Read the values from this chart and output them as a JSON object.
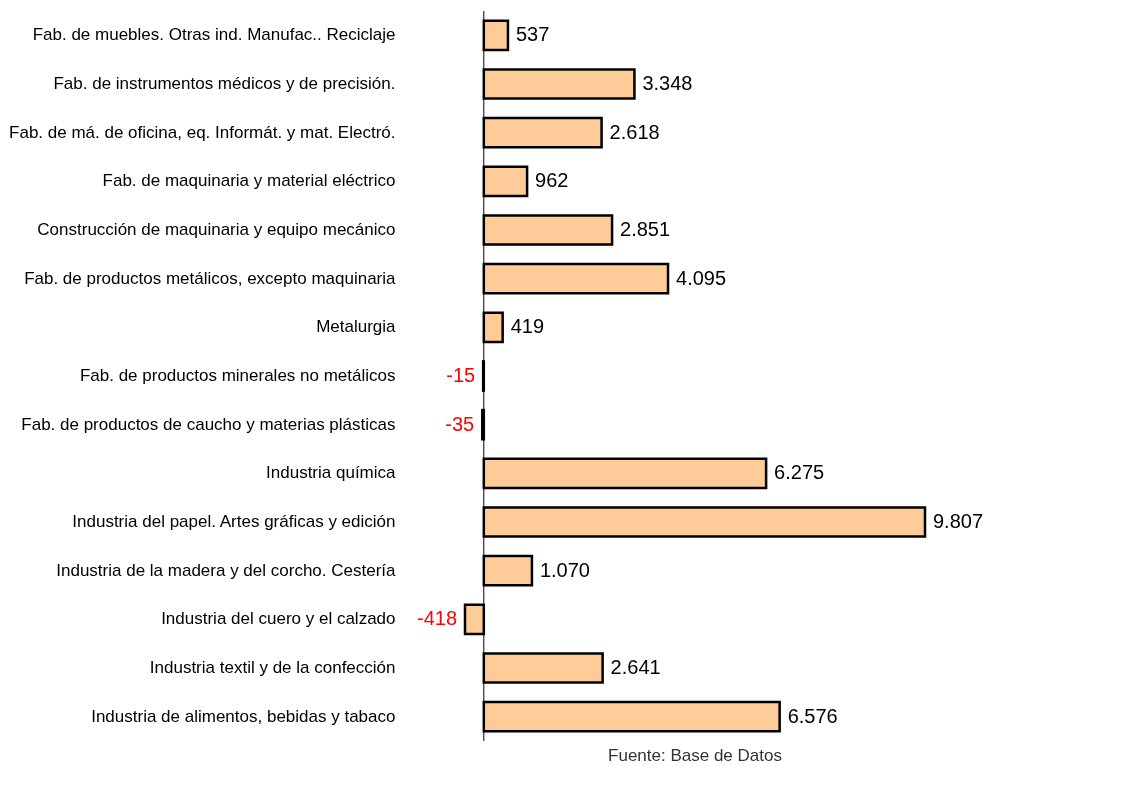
{
  "chart_data": {
    "type": "bar",
    "orientation": "horizontal",
    "categories": [
      "Fab. de muebles. Otras ind. Manufac.. Reciclaje",
      "Fab. de instrumentos médicos y de precisión.",
      "Fab. de má. de oficina, eq. Informát. y mat. Electró.",
      "Fab. de maquinaria y material eléctrico",
      "Construcción de maquinaria y equipo mecánico",
      "Fab. de productos metálicos, excepto maquinaria",
      "Metalurgia",
      "Fab. de productos minerales no metálicos",
      "Fab. de productos de caucho y materias plásticas",
      "Industria química",
      "Industria del papel. Artes gráficas y edición",
      "Industria de la madera y del corcho. Cestería",
      "Industria del cuero y el calzado",
      "Industria textil y de la confección",
      "Industria de alimentos, bebidas y tabaco"
    ],
    "values": [
      537,
      3348,
      2618,
      962,
      2851,
      4095,
      419,
      -15,
      -35,
      6275,
      9807,
      1070,
      -418,
      2641,
      6576
    ],
    "value_labels": [
      "537",
      "3.348",
      "2.618",
      "962",
      "2.851",
      "4.095",
      "419",
      "-15",
      "-35",
      "6.275",
      "9.807",
      "1.070",
      "-418",
      "2.641",
      "6.576"
    ],
    "color": "#ffcc99",
    "grid": false,
    "annotations": [
      "Fuente: Base de Datos"
    ]
  }
}
